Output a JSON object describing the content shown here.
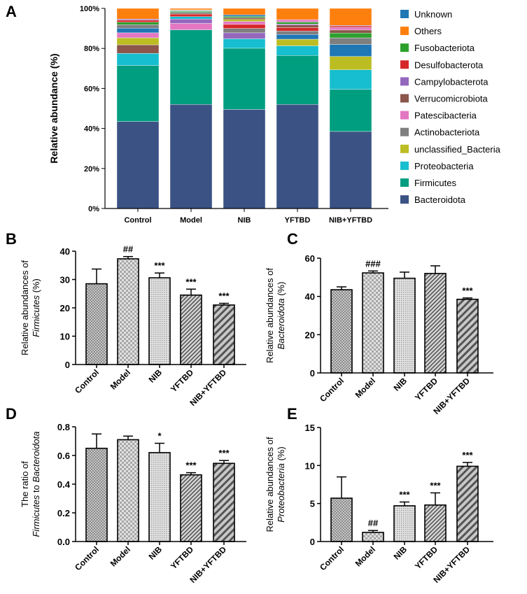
{
  "panel_labels": [
    "A",
    "B",
    "C",
    "D",
    "E"
  ],
  "colors": {
    "Unknown": "#1f77b4",
    "Others": "#ff7f0e",
    "Fusobacteriota": "#2ca02c",
    "Desulfobacterota": "#d62728",
    "Campylobacterota": "#9467bd",
    "Verrucomicrobiota": "#8c564b",
    "Patescibacteria": "#e377c2",
    "Actinobacteriota": "#7f7f7f",
    "unclassified_Bacteria": "#bcbd22",
    "Proteobacteria": "#17becf",
    "Firmicutes": "#009e80",
    "Bacteroidota": "#3b5284"
  },
  "chart_data": [
    {
      "type": "bar",
      "stacked": true,
      "title": "",
      "ylabel": "Relative abundance (%)",
      "ylim": [
        0,
        100
      ],
      "yticks": [
        "0%",
        "20%",
        "40%",
        "60%",
        "80%",
        "100%"
      ],
      "categories": [
        "Control",
        "Model",
        "NIB",
        "YFTBD",
        "NIB+YFTBD"
      ],
      "legend": [
        "Unknown",
        "Others",
        "Fusobacteriota",
        "Desulfobacterota",
        "Campylobacterota",
        "Verrucomicrobiota",
        "Patescibacteria",
        "Actinobacteriota",
        "unclassified_Bacteria",
        "Proteobacteria",
        "Firmicutes",
        "Bacteroidota"
      ],
      "legend_position": "right",
      "stacks": [
        [
          [
            "Bacteroidota",
            43.5
          ],
          [
            "Firmicutes",
            28
          ],
          [
            "Proteobacteria",
            6
          ],
          [
            "Verrucomicrobiota",
            4.3
          ],
          [
            "unclassified_Bacteria",
            3.5
          ],
          [
            "Patescibacteria",
            2.5
          ],
          [
            "Unknown",
            2.3
          ],
          [
            "Actinobacteriota",
            1.8
          ],
          [
            "Fusobacteriota",
            1.2
          ],
          [
            "Desulfobacterota",
            1
          ],
          [
            "Campylobacterota",
            0.6
          ],
          [
            "Others",
            5.3
          ]
        ],
        [
          [
            "Bacteroidota",
            52
          ],
          [
            "Firmicutes",
            37.3
          ],
          [
            "Patescibacteria",
            3.2
          ],
          [
            "Campylobacterota",
            2.2
          ],
          [
            "Proteobacteria",
            1.2
          ],
          [
            "Desulfobacterota",
            1.3
          ],
          [
            "Actinobacteriota",
            0.8
          ],
          [
            "Fusobacteriota",
            0.5
          ],
          [
            "Unknown",
            0.3
          ],
          [
            "Verrucomicrobiota",
            0.3
          ],
          [
            "unclassified_Bacteria",
            0.2
          ],
          [
            "Others",
            0.7
          ]
        ],
        [
          [
            "Bacteroidota",
            49.5
          ],
          [
            "Firmicutes",
            30.6
          ],
          [
            "Proteobacteria",
            4.7
          ],
          [
            "Campylobacterota",
            3
          ],
          [
            "Actinobacteriota",
            2.2
          ],
          [
            "Desulfobacterota",
            2
          ],
          [
            "Patescibacteria",
            1.5
          ],
          [
            "unclassified_Bacteria",
            1
          ],
          [
            "Verrucomicrobiota",
            0.8
          ],
          [
            "Fusobacteriota",
            0.7
          ],
          [
            "Unknown",
            0.8
          ],
          [
            "Others",
            3.2
          ]
        ],
        [
          [
            "Bacteroidota",
            52
          ],
          [
            "Firmicutes",
            24.5
          ],
          [
            "Proteobacteria",
            4.8
          ],
          [
            "unclassified_Bacteria",
            3.3
          ],
          [
            "Unknown",
            2.4
          ],
          [
            "Actinobacteriota",
            1.7
          ],
          [
            "Desulfobacterota",
            1.7
          ],
          [
            "Verrucomicrobiota",
            1.3
          ],
          [
            "Campylobacterota",
            0.5
          ],
          [
            "Fusobacteriota",
            1
          ],
          [
            "Patescibacteria",
            1.2
          ],
          [
            "Others",
            5.6
          ]
        ],
        [
          [
            "Bacteroidota",
            38.5
          ],
          [
            "Firmicutes",
            21
          ],
          [
            "Proteobacteria",
            9.8
          ],
          [
            "unclassified_Bacteria",
            6.7
          ],
          [
            "Unknown",
            6
          ],
          [
            "Actinobacteriota",
            3.3
          ],
          [
            "Fusobacteriota",
            2.4
          ],
          [
            "Verrucomicrobiota",
            1.5
          ],
          [
            "Patescibacteria",
            1.3
          ],
          [
            "Desulfobacterota",
            0.7
          ],
          [
            "Campylobacterota",
            0.3
          ],
          [
            "Others",
            8.5
          ]
        ]
      ]
    },
    {
      "type": "bar",
      "ylabel": [
        "Relative abundances of",
        "Firmicutes",
        " (%)"
      ],
      "ylim": [
        0,
        40
      ],
      "yticks": [
        0,
        10,
        20,
        30,
        40
      ],
      "categories": [
        "Control",
        "Model",
        "NIB",
        "YFTBD",
        "NIB+YFTBD"
      ],
      "values": [
        28.5,
        37.3,
        30.6,
        24.5,
        21.0
      ],
      "errors": [
        5.2,
        0.8,
        1.7,
        2.1,
        0.6
      ],
      "annotations": [
        "",
        "##",
        "***",
        "***",
        "***"
      ]
    },
    {
      "type": "bar",
      "ylabel": [
        "Relative abundances of",
        "Bacteroidota",
        " (%)"
      ],
      "ylim": [
        0,
        60
      ],
      "yticks": [
        0,
        20,
        40,
        60
      ],
      "categories": [
        "Control",
        "Model",
        "NIB",
        "YFTBD",
        "NIB+YFTBD"
      ],
      "values": [
        43.5,
        52.3,
        49.5,
        52.0,
        38.5
      ],
      "errors": [
        1.5,
        1.0,
        3.2,
        4.0,
        0.7
      ],
      "annotations": [
        "",
        "###",
        "",
        "",
        "***"
      ]
    },
    {
      "type": "bar",
      "ylabel": [
        "The ratio of",
        "Firmicutes",
        " to ",
        "Bacteroidota"
      ],
      "ylim": [
        0,
        0.8
      ],
      "yticks": [
        "0.0",
        "0.2",
        "0.4",
        "0.6",
        "0.8"
      ],
      "categories": [
        "Control",
        "Model",
        "NIB",
        "YFTBD",
        "NIB+YFTBD"
      ],
      "values": [
        0.65,
        0.71,
        0.62,
        0.465,
        0.545
      ],
      "errors": [
        0.1,
        0.025,
        0.065,
        0.015,
        0.02
      ],
      "annotations": [
        "",
        "",
        "*",
        "***",
        "***"
      ]
    },
    {
      "type": "bar",
      "ylabel": [
        "Relative abundances of",
        "Proteobacteria",
        " (%)"
      ],
      "ylim": [
        0,
        15
      ],
      "yticks": [
        0,
        5,
        10,
        15
      ],
      "categories": [
        "Control",
        "Model",
        "NIB",
        "YFTBD",
        "NIB+YFTBD"
      ],
      "values": [
        5.7,
        1.2,
        4.7,
        4.8,
        9.9
      ],
      "errors": [
        2.8,
        0.25,
        0.5,
        1.6,
        0.5
      ],
      "annotations": [
        "",
        "##",
        "***",
        "***",
        "***"
      ]
    }
  ]
}
